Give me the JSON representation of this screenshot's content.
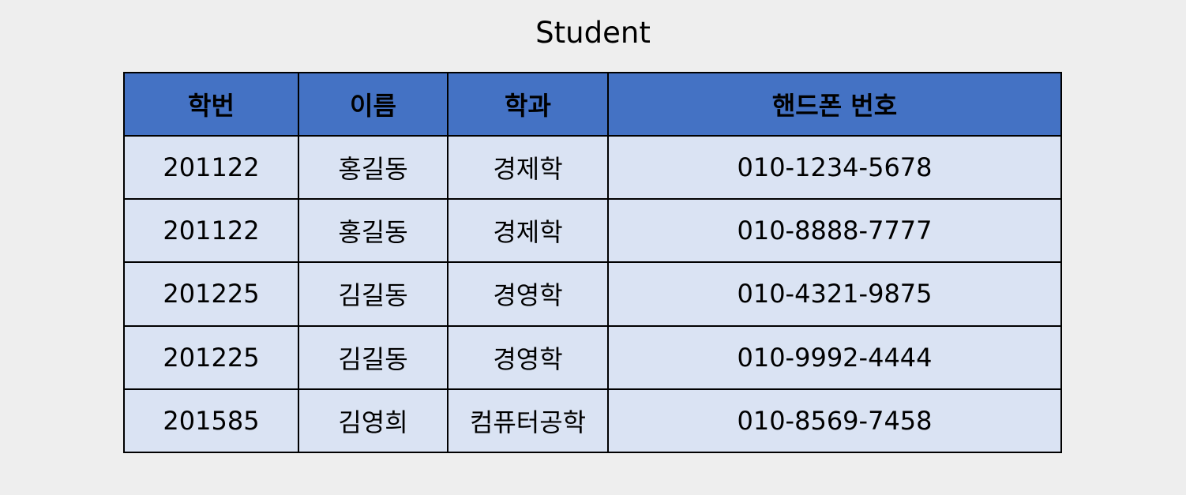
{
  "title": "Student",
  "table": {
    "headers": [
      "학번",
      "이름",
      "학과",
      "핸드폰 번호"
    ],
    "rows": [
      [
        "201122",
        "홍길동",
        "경제학",
        "010-1234-5678"
      ],
      [
        "201122",
        "홍길동",
        "경제학",
        "010-8888-7777"
      ],
      [
        "201225",
        "김길동",
        "경영학",
        "010-4321-9875"
      ],
      [
        "201225",
        "김길동",
        "경영학",
        "010-9992-4444"
      ],
      [
        "201585",
        "김영희",
        "컴퓨터공학",
        "010-8569-7458"
      ]
    ]
  },
  "colors": {
    "background": "#eeeeee",
    "header_fill": "#4472c4",
    "cell_fill": "#dae3f3",
    "border": "#000000"
  }
}
